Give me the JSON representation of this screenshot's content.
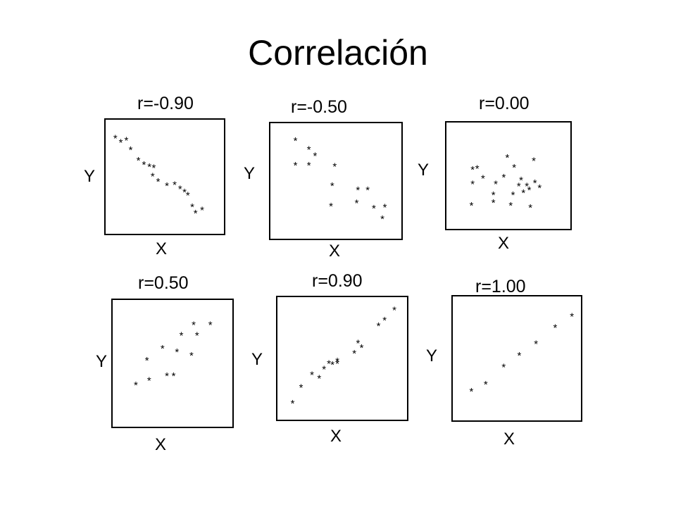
{
  "slide": {
    "title": "Correlación"
  },
  "chart_data": [
    {
      "type": "scatter",
      "title": "r=-0.90",
      "xlabel": "X",
      "ylabel": "Y",
      "marker": "*",
      "xlim": [
        0,
        10
      ],
      "ylim": [
        0,
        10
      ],
      "points": [
        [
          0.5,
          8.7
        ],
        [
          1.0,
          8.3
        ],
        [
          1.5,
          8.5
        ],
        [
          1.9,
          7.6
        ],
        [
          2.6,
          6.6
        ],
        [
          3.1,
          6.2
        ],
        [
          3.6,
          6.0
        ],
        [
          4.0,
          5.9
        ],
        [
          3.9,
          5.1
        ],
        [
          4.4,
          4.6
        ],
        [
          5.2,
          4.2
        ],
        [
          5.9,
          4.3
        ],
        [
          6.4,
          3.9
        ],
        [
          6.8,
          3.6
        ],
        [
          7.1,
          3.3
        ],
        [
          7.5,
          2.2
        ],
        [
          7.8,
          1.6
        ],
        [
          8.4,
          1.9
        ]
      ]
    },
    {
      "type": "scatter",
      "title": "r=-0.50",
      "xlabel": "X",
      "ylabel": "Y",
      "marker": "*",
      "xlim": [
        0,
        10
      ],
      "ylim": [
        0,
        10
      ],
      "points": [
        [
          1.7,
          8.8
        ],
        [
          2.8,
          8.0
        ],
        [
          3.3,
          7.4
        ],
        [
          1.7,
          6.5
        ],
        [
          2.8,
          6.5
        ],
        [
          4.9,
          6.4
        ],
        [
          4.7,
          4.6
        ],
        [
          6.8,
          4.2
        ],
        [
          7.6,
          4.2
        ],
        [
          4.6,
          2.7
        ],
        [
          6.7,
          3.0
        ],
        [
          8.1,
          2.5
        ],
        [
          9.0,
          2.6
        ],
        [
          8.8,
          1.5
        ]
      ]
    },
    {
      "type": "scatter",
      "title": "r=0.00",
      "xlabel": "X",
      "ylabel": "Y",
      "marker": "*",
      "xlim": [
        0,
        10
      ],
      "ylim": [
        0,
        10
      ],
      "points": [
        [
          1.9,
          5.7
        ],
        [
          2.3,
          5.8
        ],
        [
          4.9,
          6.9
        ],
        [
          5.5,
          5.9
        ],
        [
          7.2,
          6.6
        ],
        [
          2.8,
          4.8
        ],
        [
          4.6,
          4.9
        ],
        [
          6.1,
          4.6
        ],
        [
          1.9,
          4.2
        ],
        [
          3.9,
          4.2
        ],
        [
          5.9,
          4.0
        ],
        [
          6.6,
          4.0
        ],
        [
          7.3,
          4.3
        ],
        [
          7.7,
          3.8
        ],
        [
          3.7,
          3.1
        ],
        [
          5.4,
          3.1
        ],
        [
          6.3,
          3.3
        ],
        [
          6.8,
          3.6
        ],
        [
          1.8,
          2.0
        ],
        [
          3.7,
          2.3
        ],
        [
          5.2,
          2.0
        ],
        [
          6.9,
          1.8
        ]
      ]
    },
    {
      "type": "scatter",
      "title": "r=0.50",
      "xlabel": "X",
      "ylabel": "Y",
      "marker": "*",
      "xlim": [
        0,
        10
      ],
      "ylim": [
        0,
        10
      ],
      "points": [
        [
          1.7,
          3.2
        ],
        [
          2.9,
          3.6
        ],
        [
          2.7,
          5.3
        ],
        [
          4.1,
          6.3
        ],
        [
          5.4,
          6.0
        ],
        [
          4.5,
          4.0
        ],
        [
          5.1,
          4.0
        ],
        [
          5.8,
          7.4
        ],
        [
          6.7,
          5.7
        ],
        [
          6.9,
          8.3
        ],
        [
          7.2,
          7.4
        ],
        [
          8.4,
          8.3
        ]
      ]
    },
    {
      "type": "scatter",
      "title": "r=0.90",
      "xlabel": "X",
      "ylabel": "Y",
      "marker": "*",
      "xlim": [
        0,
        10
      ],
      "ylim": [
        0,
        10
      ],
      "points": [
        [
          0.9,
          1.1
        ],
        [
          1.6,
          2.5
        ],
        [
          2.5,
          3.6
        ],
        [
          3.1,
          3.3
        ],
        [
          3.5,
          4.1
        ],
        [
          3.9,
          4.6
        ],
        [
          4.2,
          4.5
        ],
        [
          4.6,
          4.6
        ],
        [
          4.6,
          4.8
        ],
        [
          6.0,
          5.5
        ],
        [
          6.3,
          6.4
        ],
        [
          6.6,
          6.0
        ],
        [
          8.0,
          7.9
        ],
        [
          8.5,
          8.4
        ],
        [
          9.3,
          9.3
        ]
      ]
    },
    {
      "type": "scatter",
      "title": "r=1.00",
      "xlabel": "X",
      "ylabel": "Y",
      "marker": "*",
      "xlim": [
        0,
        10
      ],
      "ylim": [
        0,
        10
      ],
      "points": [
        [
          1.2,
          2.2
        ],
        [
          2.4,
          2.8
        ],
        [
          3.9,
          4.3
        ],
        [
          5.2,
          5.3
        ],
        [
          6.6,
          6.3
        ],
        [
          8.2,
          7.7
        ],
        [
          9.6,
          8.7
        ]
      ]
    }
  ]
}
